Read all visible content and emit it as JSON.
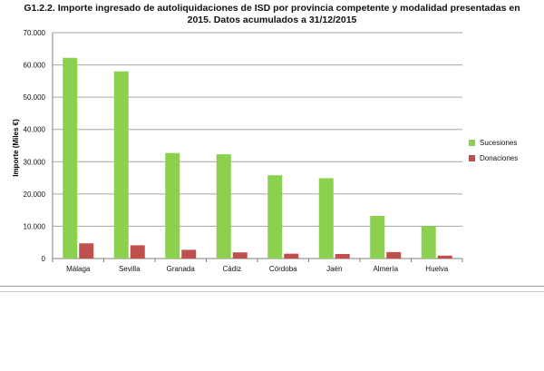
{
  "title_lines": [
    "G1.2.2. Importe ingresado de autoliquidaciones de ISD por provincia competente y modalidad presentadas en",
    "2015. Datos acumulados a 31/12/2015"
  ],
  "chart_data": {
    "type": "bar",
    "title": "G1.2.2. Importe ingresado de autoliquidaciones de ISD por provincia competente y modalidad presentadas en 2015. Datos acumulados a 31/12/2015",
    "xlabel": "",
    "ylabel": "Importe (Miles €)",
    "ylim": [
      0,
      70000
    ],
    "y_ticks": [
      "0",
      "10.000",
      "20.000",
      "30.000",
      "40.000",
      "50.000",
      "60.000",
      "70.000"
    ],
    "grid": true,
    "legend_position": "right",
    "categories": [
      "Málaga",
      "Sevilla",
      "Granada",
      "Cádiz",
      "Córdoba",
      "Jaén",
      "Almería",
      "Huelva"
    ],
    "series": [
      {
        "name": "Sucesiones",
        "color": "#8cd04f",
        "values": [
          62200,
          58000,
          32700,
          32300,
          25800,
          24900,
          13200,
          10000
        ]
      },
      {
        "name": "Donaciones",
        "color": "#c0504d",
        "values": [
          4700,
          4100,
          2700,
          1900,
          1500,
          1400,
          2000,
          900
        ]
      }
    ]
  }
}
